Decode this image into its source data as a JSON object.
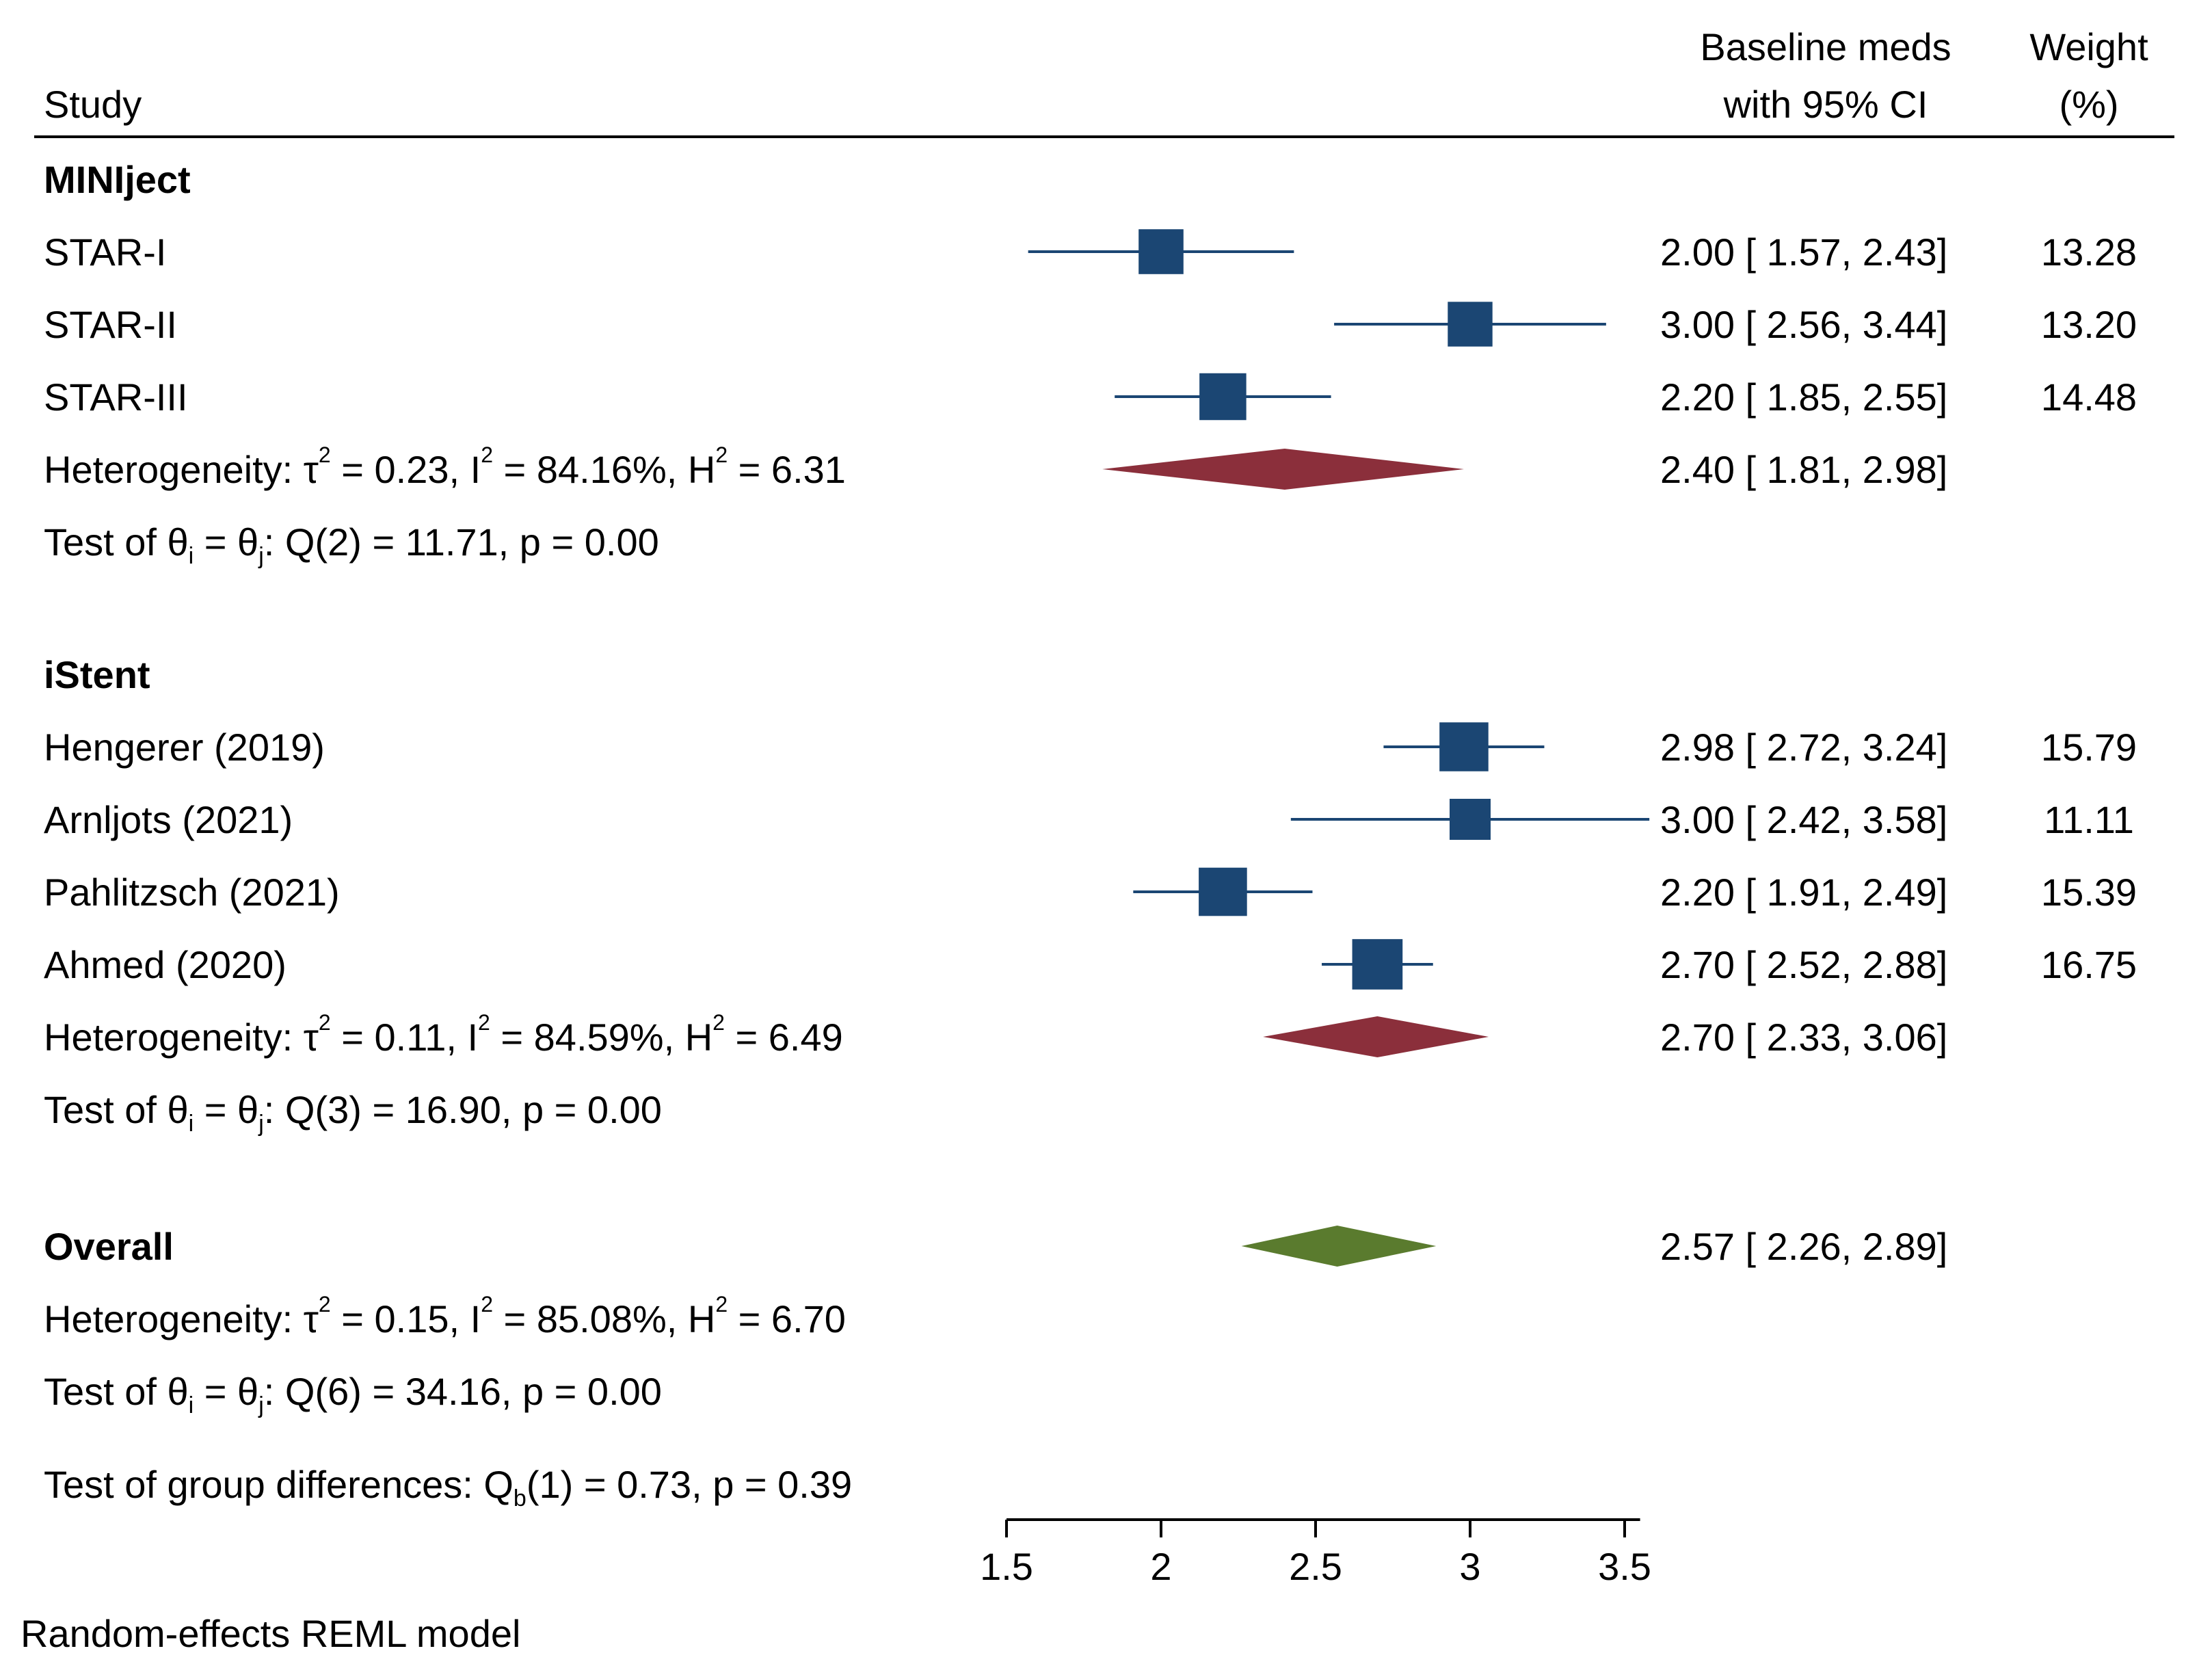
{
  "colors": {
    "study_marker": "#1b4673",
    "group_diamond": "#8b2f3b",
    "overall_diamond": "#5a7b2e",
    "text": "#000000"
  },
  "chart_data": {
    "type": "forest",
    "model_note": "Random-effects REML model",
    "header": {
      "study": "Study",
      "effect_line1": "Baseline meds",
      "effect_line2": "with 95% CI",
      "weight_line1": "Weight",
      "weight_line2": "(%)"
    },
    "x_axis": {
      "ticks": [
        1.5,
        2,
        2.5,
        3,
        3.5
      ],
      "tick_labels": [
        "1.5",
        "2",
        "2.5",
        "3",
        "3.5"
      ],
      "range": [
        1.5,
        3.55
      ]
    },
    "groups": [
      {
        "name": "MINIject",
        "studies": [
          {
            "label": "STAR-I",
            "estimate": 2.0,
            "ci_low": 1.57,
            "ci_high": 2.43,
            "effect_text": "2.00 [ 1.57,  2.43]",
            "weight": "13.28"
          },
          {
            "label": "STAR-II",
            "estimate": 3.0,
            "ci_low": 2.56,
            "ci_high": 3.44,
            "effect_text": "3.00 [ 2.56,  3.44]",
            "weight": "13.20"
          },
          {
            "label": "STAR-III",
            "estimate": 2.2,
            "ci_low": 1.85,
            "ci_high": 2.55,
            "effect_text": "2.20 [ 1.85,  2.55]",
            "weight": "14.48"
          }
        ],
        "summary": {
          "estimate": 2.4,
          "ci_low": 1.81,
          "ci_high": 2.98,
          "effect_text": "2.40 [ 1.81,  2.98]",
          "het_prefix": "Heterogeneity: τ",
          "tau2": "0.23",
          "i2": "84.16%",
          "h2": "6.31",
          "q_df": "2",
          "q_value": "11.71",
          "p": "0.00"
        }
      },
      {
        "name": "iStent",
        "studies": [
          {
            "label": "Hengerer (2019)",
            "estimate": 2.98,
            "ci_low": 2.72,
            "ci_high": 3.24,
            "effect_text": "2.98 [ 2.72,  3.24]",
            "weight": "15.79"
          },
          {
            "label": "Arnljots (2021)",
            "estimate": 3.0,
            "ci_low": 2.42,
            "ci_high": 3.58,
            "effect_text": "3.00 [ 2.42,  3.58]",
            "weight": "11.11"
          },
          {
            "label": "Pahlitzsch (2021)",
            "estimate": 2.2,
            "ci_low": 1.91,
            "ci_high": 2.49,
            "effect_text": "2.20 [ 1.91,  2.49]",
            "weight": "15.39"
          },
          {
            "label": "Ahmed (2020)",
            "estimate": 2.7,
            "ci_low": 2.52,
            "ci_high": 2.88,
            "effect_text": "2.70 [ 2.52,  2.88]",
            "weight": "16.75"
          }
        ],
        "summary": {
          "estimate": 2.7,
          "ci_low": 2.33,
          "ci_high": 3.06,
          "effect_text": "2.70 [ 2.33,  3.06]",
          "het_prefix": "Heterogeneity: τ",
          "tau2": "0.11",
          "i2": "84.59%",
          "h2": "6.49",
          "q_df": "3",
          "q_value": "16.90",
          "p": "0.00"
        }
      }
    ],
    "overall": {
      "label": "Overall",
      "estimate": 2.57,
      "ci_low": 2.26,
      "ci_high": 2.89,
      "effect_text": "2.57 [ 2.26,  2.89]",
      "het_prefix": "Heterogeneity: τ",
      "tau2": "0.15",
      "i2": "85.08%",
      "h2": "6.70",
      "q_df": "6",
      "q_value": "34.16",
      "p": "0.00"
    },
    "group_test": {
      "q_df": "1",
      "q_value": "0.73",
      "p": "0.39"
    }
  }
}
